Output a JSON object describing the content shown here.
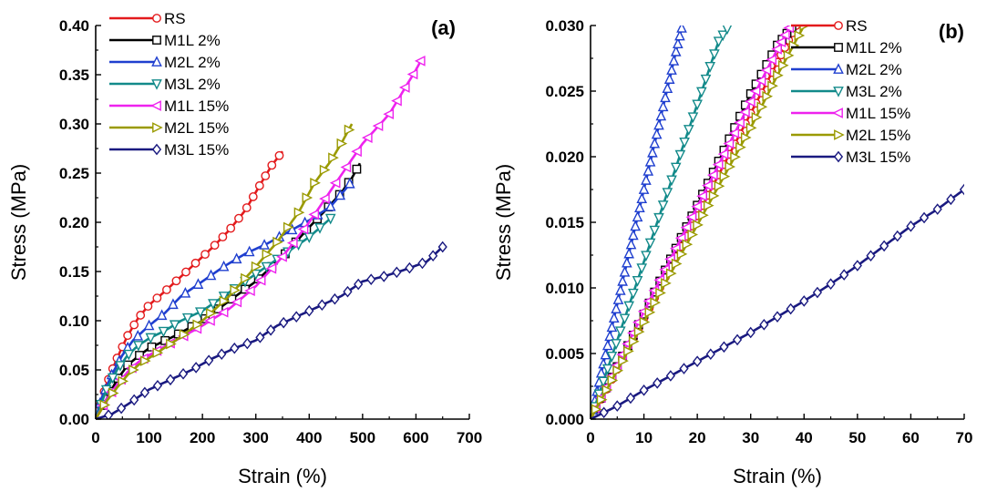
{
  "chart_data": [
    {
      "type": "line",
      "panel_label": "(a)",
      "xlabel": "Strain (%)",
      "ylabel": "Stress (MPa)",
      "xlim": [
        0,
        700
      ],
      "ylim": [
        0,
        0.4
      ],
      "x_ticks": [
        0,
        100,
        200,
        300,
        400,
        500,
        600,
        700
      ],
      "y_ticks": [
        "0.00",
        "0.05",
        "0.10",
        "0.15",
        "0.20",
        "0.25",
        "0.30",
        "0.35",
        "0.40"
      ],
      "legend_position": "top-left",
      "series": [
        {
          "name": "RS",
          "color": "#e31a1c",
          "marker": "circle",
          "marker_every": 12,
          "x": [
            0,
            20,
            40,
            60,
            80,
            100,
            130,
            160,
            190,
            220,
            250,
            280,
            310,
            330,
            350
          ],
          "y": [
            0,
            0.035,
            0.062,
            0.085,
            0.103,
            0.116,
            0.13,
            0.145,
            0.16,
            0.175,
            0.192,
            0.212,
            0.24,
            0.258,
            0.272
          ]
        },
        {
          "name": "M1L 2%",
          "color": "#000000",
          "marker": "square",
          "marker_every": 16,
          "x": [
            0,
            20,
            40,
            60,
            80,
            100,
            150,
            200,
            250,
            300,
            350,
            400,
            430,
            460,
            480,
            495
          ],
          "y": [
            0,
            0.02,
            0.04,
            0.055,
            0.064,
            0.072,
            0.085,
            0.1,
            0.12,
            0.14,
            0.165,
            0.195,
            0.212,
            0.23,
            0.245,
            0.26
          ]
        },
        {
          "name": "M2L 2%",
          "color": "#1f3fcf",
          "marker": "triangle-up",
          "marker_every": 16,
          "x": [
            0,
            10,
            30,
            50,
            70,
            100,
            130,
            160,
            200,
            240,
            280,
            320,
            360,
            400,
            440,
            470,
            480
          ],
          "y": [
            0,
            0.02,
            0.045,
            0.065,
            0.08,
            0.095,
            0.108,
            0.125,
            0.14,
            0.155,
            0.168,
            0.178,
            0.19,
            0.202,
            0.216,
            0.235,
            0.242
          ]
        },
        {
          "name": "M3L 2%",
          "color": "#128a8a",
          "marker": "triangle-down",
          "marker_every": 14,
          "x": [
            0,
            20,
            40,
            60,
            80,
            100,
            130,
            160,
            200,
            240,
            280,
            320,
            360,
            400,
            440
          ],
          "y": [
            0,
            0.03,
            0.05,
            0.065,
            0.075,
            0.082,
            0.09,
            0.1,
            0.11,
            0.125,
            0.14,
            0.155,
            0.17,
            0.185,
            0.204
          ]
        },
        {
          "name": "M1L 15%",
          "color": "#ee22ee",
          "marker": "triangle-left",
          "marker_every": 16,
          "x": [
            0,
            20,
            40,
            60,
            80,
            100,
            150,
            200,
            250,
            300,
            350,
            400,
            450,
            500,
            550,
            600,
            610
          ],
          "y": [
            0,
            0.02,
            0.035,
            0.048,
            0.058,
            0.065,
            0.08,
            0.095,
            0.112,
            0.135,
            0.165,
            0.2,
            0.24,
            0.28,
            0.31,
            0.355,
            0.365
          ]
        },
        {
          "name": "M2L 15%",
          "color": "#9a9a00",
          "marker": "triangle-right",
          "marker_every": 16,
          "x": [
            0,
            20,
            40,
            60,
            80,
            100,
            150,
            200,
            250,
            300,
            340,
            380,
            410,
            440,
            460,
            480
          ],
          "y": [
            0,
            0.018,
            0.032,
            0.045,
            0.055,
            0.062,
            0.08,
            0.1,
            0.125,
            0.155,
            0.18,
            0.21,
            0.24,
            0.262,
            0.28,
            0.3
          ]
        },
        {
          "name": "M3L 15%",
          "color": "#1a1a80",
          "marker": "diamond",
          "marker_every": 14,
          "x": [
            0,
            30,
            60,
            100,
            140,
            180,
            220,
            260,
            300,
            340,
            380,
            420,
            460,
            500,
            540,
            580,
            620,
            650
          ],
          "y": [
            0,
            0.005,
            0.015,
            0.03,
            0.04,
            0.05,
            0.062,
            0.072,
            0.08,
            0.095,
            0.105,
            0.115,
            0.125,
            0.14,
            0.145,
            0.152,
            0.16,
            0.175
          ]
        }
      ]
    },
    {
      "type": "line",
      "panel_label": "(b)",
      "xlabel": "Strain (%)",
      "ylabel": "Stress (MPa)",
      "xlim": [
        0,
        70
      ],
      "ylim": [
        0,
        0.03
      ],
      "x_ticks": [
        0,
        10,
        20,
        30,
        40,
        50,
        60,
        70
      ],
      "y_ticks": [
        "0.000",
        "0.005",
        "0.010",
        "0.015",
        "0.020",
        "0.025",
        "0.030"
      ],
      "legend_position": "top-right",
      "series": [
        {
          "name": "RS",
          "color": "#e31a1c",
          "marker": "circle",
          "marker_every": 8,
          "x": [
            0,
            5,
            10,
            15,
            20,
            25,
            30,
            35,
            38.5
          ],
          "y": [
            0,
            0.0038,
            0.0077,
            0.0116,
            0.0155,
            0.0194,
            0.0233,
            0.0272,
            0.03
          ]
        },
        {
          "name": "M1L 2%",
          "color": "#000000",
          "marker": "square",
          "marker_every": 8,
          "x": [
            0,
            5,
            10,
            15,
            20,
            25,
            30,
            35,
            38
          ],
          "y": [
            0,
            0.004,
            0.008,
            0.0122,
            0.0163,
            0.0205,
            0.0248,
            0.0285,
            0.03
          ]
        },
        {
          "name": "M2L 2%",
          "color": "#1f3fcf",
          "marker": "triangle-up",
          "marker_every": 8,
          "x": [
            0,
            2,
            4,
            6,
            8,
            10,
            12,
            14,
            16,
            17.2
          ],
          "y": [
            0,
            0.0035,
            0.007,
            0.0105,
            0.014,
            0.0175,
            0.021,
            0.0245,
            0.028,
            0.03
          ]
        },
        {
          "name": "M3L 2%",
          "color": "#128a8a",
          "marker": "triangle-down",
          "marker_every": 8,
          "x": [
            0,
            4,
            8,
            12,
            16,
            20,
            24,
            26
          ],
          "y": [
            0,
            0.0048,
            0.0096,
            0.0144,
            0.0192,
            0.024,
            0.0288,
            0.03
          ]
        },
        {
          "name": "M1L 15%",
          "color": "#ee22ee",
          "marker": "triangle-left",
          "marker_every": 8,
          "x": [
            0,
            5,
            10,
            15,
            20,
            25,
            30,
            35,
            37.5
          ],
          "y": [
            0,
            0.0041,
            0.0082,
            0.0122,
            0.0162,
            0.0202,
            0.0242,
            0.0282,
            0.03
          ]
        },
        {
          "name": "M2L 15%",
          "color": "#9a9a00",
          "marker": "triangle-right",
          "marker_every": 8,
          "x": [
            0,
            5,
            10,
            15,
            20,
            25,
            30,
            35,
            40
          ],
          "y": [
            0,
            0.0037,
            0.0074,
            0.0111,
            0.0148,
            0.0185,
            0.0222,
            0.0262,
            0.03
          ]
        },
        {
          "name": "M3L 15%",
          "color": "#1a1a80",
          "marker": "diamond",
          "marker_every": 16,
          "x": [
            0,
            5,
            10,
            15,
            20,
            25,
            30,
            35,
            40,
            45,
            50,
            55,
            60,
            65,
            70
          ],
          "y": [
            0,
            0.001,
            0.0022,
            0.0033,
            0.0044,
            0.0055,
            0.0066,
            0.0078,
            0.009,
            0.0103,
            0.0117,
            0.0132,
            0.0147,
            0.016,
            0.0175
          ]
        }
      ]
    }
  ]
}
